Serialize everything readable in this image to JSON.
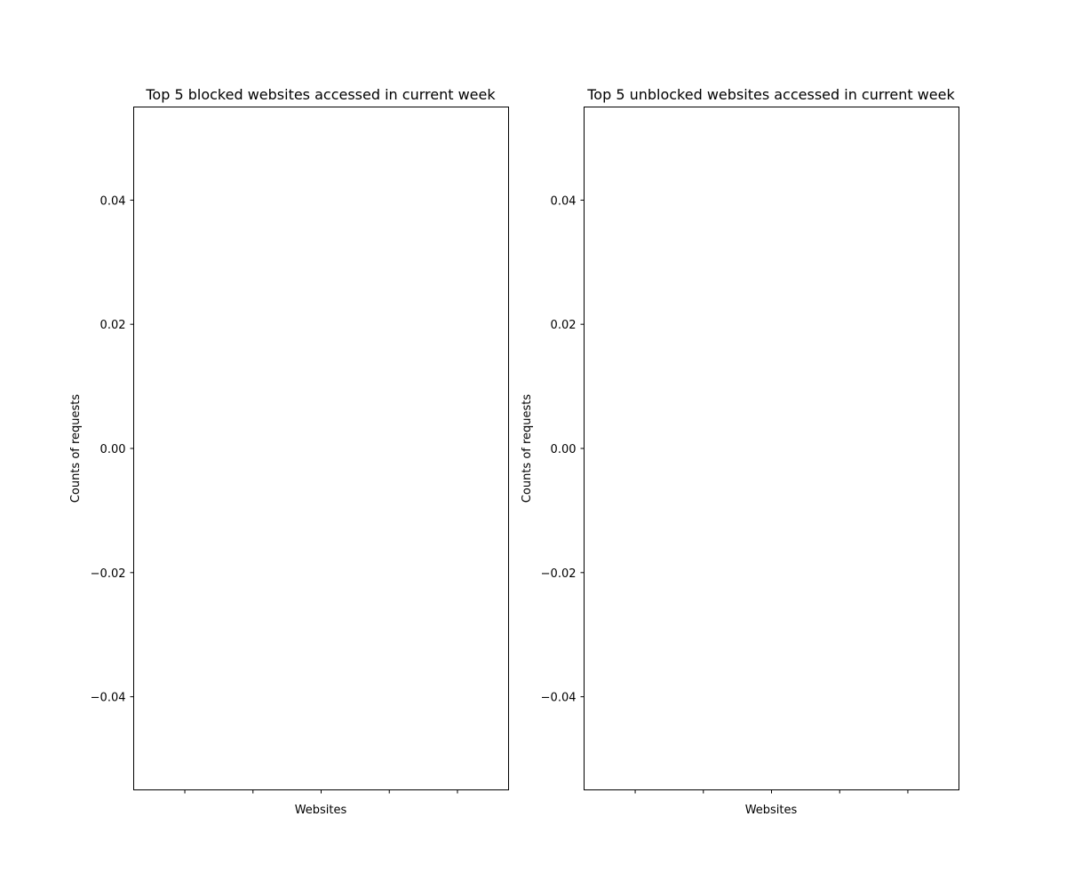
{
  "chart_data": [
    {
      "type": "bar",
      "title": "Top 5 blocked websites accessed in current week",
      "xlabel": "Websites",
      "ylabel": "Counts of requests",
      "categories": [
        "",
        "",
        "",
        "",
        ""
      ],
      "values": [
        0,
        0,
        0,
        0,
        0
      ],
      "ylim": [
        -0.055,
        0.055
      ],
      "yticks": [
        0.04,
        0.02,
        0.0,
        -0.02,
        -0.04
      ],
      "ytick_labels": [
        "0.04",
        "0.02",
        "0.00",
        "−0.02",
        "−0.04"
      ],
      "xticks": [
        0,
        1,
        2,
        3,
        4
      ],
      "grid": false
    },
    {
      "type": "bar",
      "title": "Top 5 unblocked websites accessed in current week",
      "xlabel": "Websites",
      "ylabel": "Counts of requests",
      "categories": [
        "",
        "",
        "",
        "",
        ""
      ],
      "values": [
        0,
        0,
        0,
        0,
        0
      ],
      "ylim": [
        -0.055,
        0.055
      ],
      "yticks": [
        0.04,
        0.02,
        0.0,
        -0.02,
        -0.04
      ],
      "ytick_labels": [
        "0.04",
        "0.02",
        "0.00",
        "−0.02",
        "−0.04"
      ],
      "xticks": [
        0,
        1,
        2,
        3,
        4
      ],
      "grid": false
    }
  ]
}
